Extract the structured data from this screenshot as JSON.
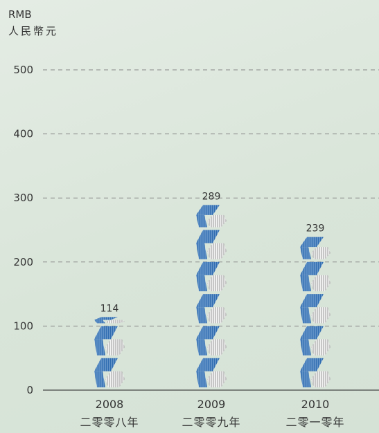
{
  "chart_data": {
    "type": "bar",
    "title": "",
    "unit_label_en": "RMB",
    "unit_label_cn": "人民幣元",
    "categories": [
      "2008",
      "2009",
      "2010"
    ],
    "categories_cn": [
      "二零零八年",
      "二零零九年",
      "二零一零年"
    ],
    "values": [
      114,
      289,
      239
    ],
    "data_labels": [
      "114",
      "289",
      "239"
    ],
    "yticks": [
      "0",
      "100",
      "200",
      "300",
      "400",
      "500"
    ],
    "ylim": [
      0,
      500
    ],
    "grid": true,
    "colors": {
      "blue": "#2f6cb0",
      "blue_light": "#8fb3dd",
      "gray": "#9a9a9a",
      "gray_light": "#e6e6e6",
      "grid": "#888888",
      "axis": "#444444",
      "text": "#333333"
    }
  }
}
